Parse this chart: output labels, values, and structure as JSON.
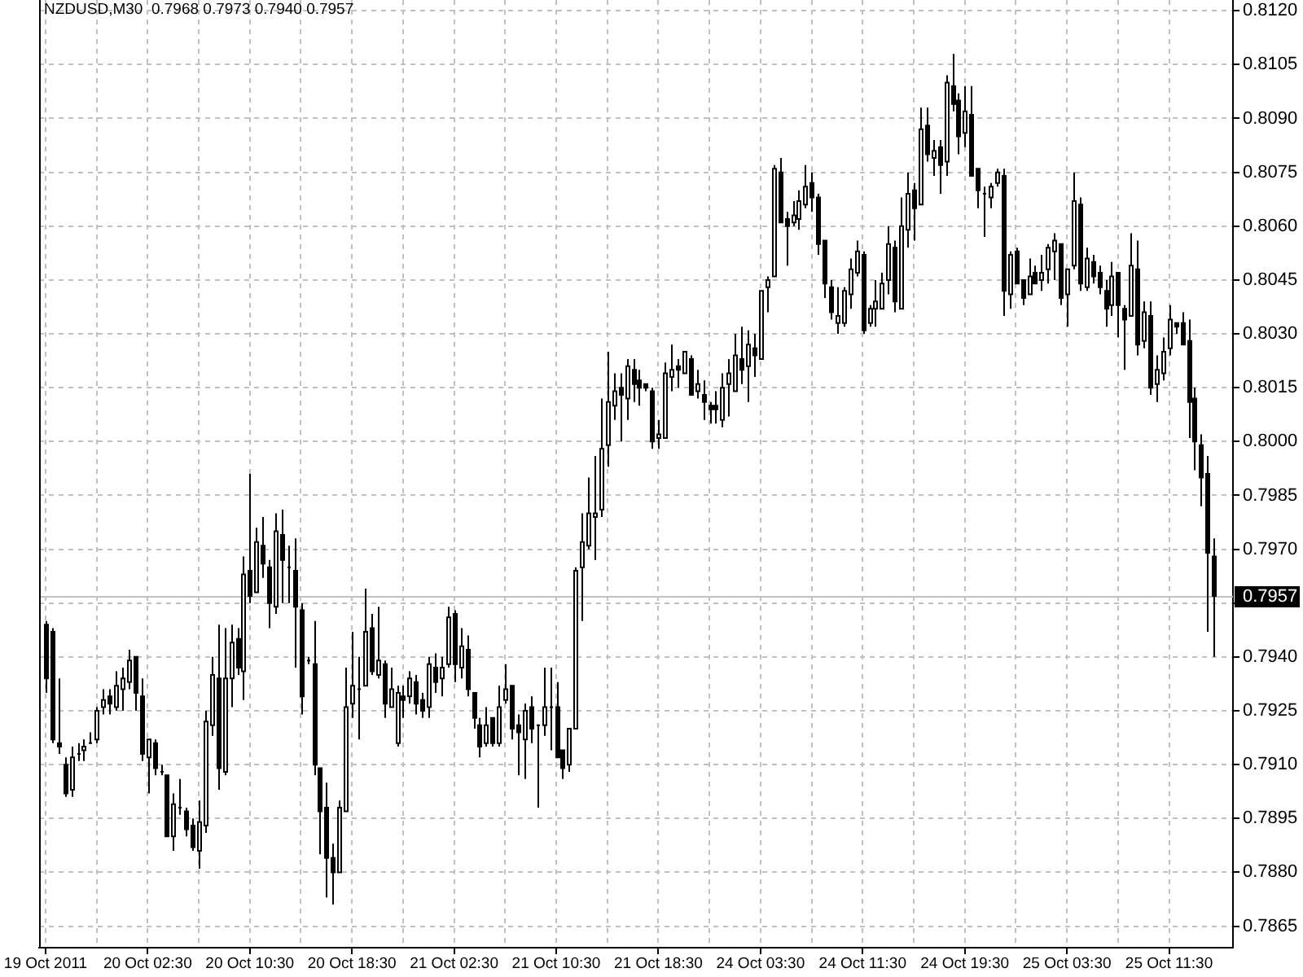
{
  "chart_data": {
    "type": "candlestick",
    "title": "NZDUSD,M30  0.7968 0.7973 0.7940 0.7957",
    "color": "#000000",
    "categories": [
      "19 Oct 2011",
      null,
      null,
      null,
      null,
      null,
      null,
      null,
      null,
      null,
      null,
      null,
      null,
      null,
      null,
      null,
      "20 Oct 02:30",
      null,
      null,
      null,
      null,
      null,
      null,
      null,
      null,
      null,
      null,
      null,
      null,
      null,
      null,
      null,
      "20 Oct 10:30",
      null,
      null,
      null,
      null,
      null,
      null,
      null,
      null,
      null,
      null,
      null,
      null,
      null,
      null,
      null,
      "20 Oct 18:30",
      null,
      null,
      null,
      null,
      null,
      null,
      null,
      null,
      null,
      null,
      null,
      null,
      null,
      null,
      null,
      "21 Oct 02:30",
      null,
      null,
      null,
      null,
      null,
      null,
      null,
      null,
      null,
      null,
      null,
      null,
      null,
      null,
      null,
      "21 Oct 10:30",
      null,
      null,
      null,
      null,
      null,
      null,
      null,
      null,
      null,
      null,
      null,
      null,
      null,
      null,
      null,
      "21 Oct 18:30",
      null,
      null,
      null,
      null,
      null,
      null,
      null,
      null,
      null,
      null,
      null,
      null,
      null,
      null,
      null,
      "24 Oct 03:30",
      null,
      null,
      null,
      null,
      null,
      null,
      null,
      null,
      null,
      null,
      null,
      null,
      null,
      null,
      null,
      "24 Oct 11:30",
      null,
      null,
      null,
      null,
      null,
      null,
      null,
      null,
      null,
      null,
      null,
      null,
      null,
      null,
      null,
      "24 Oct 19:30",
      null,
      null,
      null,
      null,
      null,
      null,
      null,
      null,
      null,
      null,
      null,
      null,
      null,
      null,
      null,
      "25 Oct 03:30",
      null,
      null,
      null,
      null,
      null,
      null,
      null,
      null,
      null,
      null,
      null,
      null,
      null,
      null,
      null,
      "25 Oct 11:30",
      null,
      null,
      null,
      null,
      null,
      null,
      null
    ],
    "ohlc": [
      [
        0.7949,
        0.795,
        0.793,
        0.7934
      ],
      [
        0.7947,
        0.7948,
        0.7916,
        0.7917
      ],
      [
        0.7916,
        0.7934,
        0.7913,
        0.7915
      ],
      [
        0.791,
        0.7912,
        0.7901,
        0.7902
      ],
      [
        0.7903,
        0.7915,
        0.7901,
        0.7912
      ],
      [
        0.7913,
        0.7916,
        0.7911,
        0.7913
      ],
      [
        0.7914,
        0.7917,
        0.7911,
        0.7915
      ],
      [
        0.7916,
        0.7919,
        0.7916,
        0.7916
      ],
      [
        0.7917,
        0.7926,
        0.7916,
        0.7925
      ],
      [
        0.7926,
        0.7931,
        0.7924,
        0.7928
      ],
      [
        0.7929,
        0.7931,
        0.7924,
        0.7927
      ],
      [
        0.7926,
        0.7936,
        0.7925,
        0.7932
      ],
      [
        0.7931,
        0.7937,
        0.7925,
        0.7934
      ],
      [
        0.7933,
        0.7942,
        0.7931,
        0.7939
      ],
      [
        0.794,
        0.794,
        0.7925,
        0.793
      ],
      [
        0.7929,
        0.7934,
        0.7911,
        0.7913
      ],
      [
        0.7912,
        0.7917,
        0.7902,
        0.7917
      ],
      [
        0.7916,
        0.7917,
        0.7907,
        0.7909
      ],
      [
        0.7908,
        0.791,
        0.7907,
        0.7908
      ],
      [
        0.7907,
        0.7907,
        0.789,
        0.789
      ],
      [
        0.789,
        0.7902,
        0.7886,
        0.7899
      ],
      [
        0.7898,
        0.7906,
        0.7896,
        0.7898
      ],
      [
        0.7897,
        0.7898,
        0.789,
        0.7892
      ],
      [
        0.7893,
        0.7895,
        0.7886,
        0.7887
      ],
      [
        0.7886,
        0.79,
        0.7881,
        0.7894
      ],
      [
        0.7893,
        0.7925,
        0.7891,
        0.7922
      ],
      [
        0.7921,
        0.794,
        0.7918,
        0.7935
      ],
      [
        0.7934,
        0.7949,
        0.7903,
        0.7909
      ],
      [
        0.7908,
        0.7948,
        0.7907,
        0.7934
      ],
      [
        0.7934,
        0.7949,
        0.7926,
        0.7944
      ],
      [
        0.7945,
        0.7948,
        0.7935,
        0.7937
      ],
      [
        0.7936,
        0.7968,
        0.7928,
        0.7963
      ],
      [
        0.7964,
        0.7991,
        0.7955,
        0.7957
      ],
      [
        0.7958,
        0.7976,
        0.7958,
        0.7972
      ],
      [
        0.7971,
        0.7979,
        0.7962,
        0.7966
      ],
      [
        0.7965,
        0.7967,
        0.7948,
        0.7955
      ],
      [
        0.7954,
        0.798,
        0.7952,
        0.7975
      ],
      [
        0.7974,
        0.7981,
        0.7955,
        0.7967
      ],
      [
        0.7965,
        0.7971,
        0.7955,
        0.7965
      ],
      [
        0.7964,
        0.7973,
        0.7937,
        0.7954
      ],
      [
        0.7953,
        0.7955,
        0.7924,
        0.7929
      ],
      [
        0.7939,
        0.794,
        0.7938,
        0.7939
      ],
      [
        0.7938,
        0.795,
        0.7907,
        0.791
      ],
      [
        0.7909,
        0.7909,
        0.7885,
        0.7897
      ],
      [
        0.7898,
        0.7905,
        0.7873,
        0.7884
      ],
      [
        0.7884,
        0.7888,
        0.7871,
        0.788
      ],
      [
        0.788,
        0.79,
        0.788,
        0.7898
      ],
      [
        0.7897,
        0.7937,
        0.7897,
        0.7926
      ],
      [
        0.7927,
        0.7947,
        0.7923,
        0.7932
      ],
      [
        0.7931,
        0.794,
        0.7917,
        0.7931
      ],
      [
        0.7932,
        0.7959,
        0.7932,
        0.7947
      ],
      [
        0.7948,
        0.7952,
        0.7935,
        0.7936
      ],
      [
        0.7935,
        0.7954,
        0.7934,
        0.7939
      ],
      [
        0.7938,
        0.7939,
        0.7923,
        0.7927
      ],
      [
        0.7926,
        0.7937,
        0.7926,
        0.7931
      ],
      [
        0.7916,
        0.7932,
        0.7915,
        0.793
      ],
      [
        0.7929,
        0.7932,
        0.7923,
        0.7928
      ],
      [
        0.7929,
        0.7936,
        0.7927,
        0.7934
      ],
      [
        0.7933,
        0.7935,
        0.7924,
        0.7927
      ],
      [
        0.7928,
        0.793,
        0.7923,
        0.7925
      ],
      [
        0.7926,
        0.794,
        0.7923,
        0.7938
      ],
      [
        0.7937,
        0.7941,
        0.793,
        0.7933
      ],
      [
        0.7934,
        0.794,
        0.7929,
        0.7937
      ],
      [
        0.7938,
        0.7954,
        0.7937,
        0.7951
      ],
      [
        0.7952,
        0.7953,
        0.7933,
        0.7938
      ],
      [
        0.7937,
        0.7948,
        0.7934,
        0.7943
      ],
      [
        0.7942,
        0.7946,
        0.7929,
        0.7931
      ],
      [
        0.793,
        0.793,
        0.792,
        0.7923
      ],
      [
        0.7921,
        0.7923,
        0.7912,
        0.7915
      ],
      [
        0.7916,
        0.7926,
        0.7915,
        0.7921
      ],
      [
        0.7923,
        0.7923,
        0.7915,
        0.7916
      ],
      [
        0.7916,
        0.7932,
        0.7915,
        0.7926
      ],
      [
        0.7928,
        0.7938,
        0.7927,
        0.7931
      ],
      [
        0.7932,
        0.7932,
        0.7917,
        0.792
      ],
      [
        0.7921,
        0.7924,
        0.7907,
        0.7919
      ],
      [
        0.7917,
        0.7927,
        0.7906,
        0.7925
      ],
      [
        0.7926,
        0.7929,
        0.7916,
        0.792
      ],
      [
        0.7921,
        0.7921,
        0.7898,
        0.7921
      ],
      [
        0.7921,
        0.7937,
        0.7918,
        0.7926
      ],
      [
        0.7926,
        0.7937,
        0.7914,
        0.7926
      ],
      [
        0.7926,
        0.7933,
        0.7912,
        0.7912
      ],
      [
        0.7914,
        0.7914,
        0.7906,
        0.7909
      ],
      [
        0.791,
        0.792,
        0.7908,
        0.792
      ],
      [
        0.792,
        0.7965,
        0.792,
        0.7964
      ],
      [
        0.7965,
        0.798,
        0.795,
        0.7972
      ],
      [
        0.7971,
        0.799,
        0.797,
        0.798
      ],
      [
        0.7979,
        0.7996,
        0.7967,
        0.798
      ],
      [
        0.7981,
        0.8012,
        0.7979,
        0.7998
      ],
      [
        0.7999,
        0.8025,
        0.7993,
        0.8011
      ],
      [
        0.801,
        0.8019,
        0.8006,
        0.8014
      ],
      [
        0.8015,
        0.8019,
        0.8,
        0.8013
      ],
      [
        0.8012,
        0.8023,
        0.8006,
        0.8021
      ],
      [
        0.802,
        0.8023,
        0.8011,
        0.8016
      ],
      [
        0.8017,
        0.802,
        0.801,
        0.8015
      ],
      [
        0.8016,
        0.8016,
        0.8014,
        0.8015
      ],
      [
        0.8014,
        0.8015,
        0.7998,
        0.8
      ],
      [
        0.8001,
        0.8006,
        0.7998,
        0.8002
      ],
      [
        0.8001,
        0.8022,
        0.8001,
        0.8019
      ],
      [
        0.8018,
        0.8027,
        0.8014,
        0.802
      ],
      [
        0.8021,
        0.8023,
        0.8015,
        0.802
      ],
      [
        0.8019,
        0.8025,
        0.8019,
        0.8025
      ],
      [
        0.8023,
        0.8024,
        0.8013,
        0.8013
      ],
      [
        0.8014,
        0.802,
        0.8012,
        0.8016
      ],
      [
        0.8013,
        0.8017,
        0.8006,
        0.8011
      ],
      [
        0.801,
        0.8011,
        0.8005,
        0.8009
      ],
      [
        0.801,
        0.8014,
        0.8005,
        0.8009
      ],
      [
        0.8006,
        0.8019,
        0.8004,
        0.8015
      ],
      [
        0.8016,
        0.8023,
        0.8007,
        0.8019
      ],
      [
        0.8014,
        0.803,
        0.8014,
        0.8024
      ],
      [
        0.8023,
        0.8032,
        0.8016,
        0.802
      ],
      [
        0.8021,
        0.8031,
        0.8011,
        0.8027
      ],
      [
        0.8026,
        0.803,
        0.8018,
        0.8024
      ],
      [
        0.8023,
        0.8042,
        0.8023,
        0.8042
      ],
      [
        0.8043,
        0.8046,
        0.8036,
        0.8045
      ],
      [
        0.8046,
        0.8077,
        0.8046,
        0.8076
      ],
      [
        0.8075,
        0.8079,
        0.8061,
        0.8061
      ],
      [
        0.8062,
        0.8064,
        0.8049,
        0.806
      ],
      [
        0.8061,
        0.8067,
        0.806,
        0.8063
      ],
      [
        0.8062,
        0.807,
        0.8059,
        0.8067
      ],
      [
        0.8066,
        0.8077,
        0.8065,
        0.8071
      ],
      [
        0.8072,
        0.8075,
        0.8064,
        0.8068
      ],
      [
        0.8068,
        0.8069,
        0.8052,
        0.8055
      ],
      [
        0.8056,
        0.8056,
        0.804,
        0.8044
      ],
      [
        0.8043,
        0.8045,
        0.8034,
        0.8036
      ],
      [
        0.8033,
        0.8043,
        0.803,
        0.8035
      ],
      [
        0.8033,
        0.8043,
        0.8032,
        0.8042
      ],
      [
        0.8041,
        0.8051,
        0.8037,
        0.8048
      ],
      [
        0.8047,
        0.8056,
        0.8046,
        0.8053
      ],
      [
        0.8052,
        0.8053,
        0.803,
        0.8031
      ],
      [
        0.8033,
        0.8038,
        0.8032,
        0.8037
      ],
      [
        0.8037,
        0.8045,
        0.8032,
        0.8039
      ],
      [
        0.8037,
        0.8047,
        0.8037,
        0.8044
      ],
      [
        0.8045,
        0.806,
        0.8041,
        0.8055
      ],
      [
        0.8054,
        0.8056,
        0.8036,
        0.8039
      ],
      [
        0.8037,
        0.8068,
        0.8037,
        0.806
      ],
      [
        0.8059,
        0.8075,
        0.8054,
        0.8069
      ],
      [
        0.807,
        0.8072,
        0.8056,
        0.8065
      ],
      [
        0.8066,
        0.8093,
        0.8066,
        0.8087
      ],
      [
        0.8088,
        0.8093,
        0.8078,
        0.808
      ],
      [
        0.8079,
        0.8084,
        0.8074,
        0.8081
      ],
      [
        0.8082,
        0.8084,
        0.8069,
        0.8077
      ],
      [
        0.8078,
        0.8102,
        0.8074,
        0.81
      ],
      [
        0.8099,
        0.8108,
        0.8092,
        0.8094
      ],
      [
        0.8095,
        0.8097,
        0.808,
        0.8085
      ],
      [
        0.8086,
        0.8099,
        0.8082,
        0.8092
      ],
      [
        0.8091,
        0.8099,
        0.8074,
        0.8074
      ],
      [
        0.8076,
        0.8076,
        0.8065,
        0.807
      ],
      [
        0.8069,
        0.8071,
        0.8057,
        0.8069
      ],
      [
        0.8068,
        0.8072,
        0.8065,
        0.8071
      ],
      [
        0.8072,
        0.8076,
        0.8071,
        0.8075
      ],
      [
        0.8074,
        0.8076,
        0.8035,
        0.8042
      ],
      [
        0.8041,
        0.8053,
        0.8037,
        0.8052
      ],
      [
        0.8053,
        0.8054,
        0.8044,
        0.8044
      ],
      [
        0.8045,
        0.8045,
        0.8038,
        0.804
      ],
      [
        0.8041,
        0.8051,
        0.8041,
        0.8046
      ],
      [
        0.8047,
        0.8049,
        0.8044,
        0.8044
      ],
      [
        0.8045,
        0.8052,
        0.8042,
        0.8047
      ],
      [
        0.8048,
        0.8055,
        0.8044,
        0.8054
      ],
      [
        0.8053,
        0.8058,
        0.8045,
        0.8056
      ],
      [
        0.8055,
        0.8055,
        0.8038,
        0.804
      ],
      [
        0.8041,
        0.8048,
        0.8032,
        0.8048
      ],
      [
        0.8049,
        0.8075,
        0.8048,
        0.8067
      ],
      [
        0.8066,
        0.8068,
        0.8042,
        0.8044
      ],
      [
        0.8043,
        0.8054,
        0.8042,
        0.8051
      ],
      [
        0.805,
        0.8052,
        0.8044,
        0.8046
      ],
      [
        0.8047,
        0.8049,
        0.8041,
        0.8043
      ],
      [
        0.8042,
        0.8045,
        0.8032,
        0.8037
      ],
      [
        0.8038,
        0.805,
        0.8035,
        0.8046
      ],
      [
        0.8047,
        0.8047,
        0.8029,
        0.8038
      ],
      [
        0.8037,
        0.8038,
        0.802,
        0.8034
      ],
      [
        0.8035,
        0.8058,
        0.8035,
        0.8049
      ],
      [
        0.8048,
        0.8056,
        0.8024,
        0.8027
      ],
      [
        0.8028,
        0.8039,
        0.8026,
        0.8036
      ],
      [
        0.8035,
        0.8039,
        0.8013,
        0.8015
      ],
      [
        0.8016,
        0.8024,
        0.8011,
        0.802
      ],
      [
        0.8019,
        0.8029,
        0.8017,
        0.8025
      ],
      [
        0.8026,
        0.8038,
        0.8024,
        0.8034
      ],
      [
        0.8033,
        0.8033,
        0.803,
        0.8032
      ],
      [
        0.8033,
        0.8036,
        0.8027,
        0.8027
      ],
      [
        0.8028,
        0.8034,
        0.8001,
        0.8011
      ],
      [
        0.8012,
        0.8015,
        0.7992,
        0.8
      ],
      [
        0.7999,
        0.8002,
        0.7982,
        0.799
      ],
      [
        0.7991,
        0.7996,
        0.7947,
        0.7969
      ],
      [
        0.7968,
        0.7973,
        0.794,
        0.7957
      ]
    ],
    "ylim": [
      0.7859,
      0.8123
    ],
    "yticks": [
      {
        "value": 0.812,
        "label": "0.8120"
      },
      0.8105,
      {
        "value": 0.809,
        "label": "0.8090"
      },
      0.8075,
      {
        "value": 0.806,
        "label": "0.8060"
      },
      0.8045,
      {
        "value": 0.803,
        "label": "0.8030"
      },
      0.8015,
      {
        "value": 0.8,
        "label": "0.8000"
      },
      0.7985,
      {
        "value": 0.797,
        "label": "0.7970"
      },
      {
        "value": 0.7955,
        "label": null
      },
      {
        "value": 0.794,
        "label": "0.7940"
      },
      0.7925,
      {
        "value": 0.791,
        "label": "0.7910"
      },
      0.7895,
      {
        "value": 0.788,
        "label": "0.7880"
      },
      0.7865
    ],
    "grid": true,
    "ref_lines": [
      {
        "axis": "y",
        "value": 0.7957,
        "label": "0.7957",
        "color": "#c0c0c0"
      }
    ]
  }
}
